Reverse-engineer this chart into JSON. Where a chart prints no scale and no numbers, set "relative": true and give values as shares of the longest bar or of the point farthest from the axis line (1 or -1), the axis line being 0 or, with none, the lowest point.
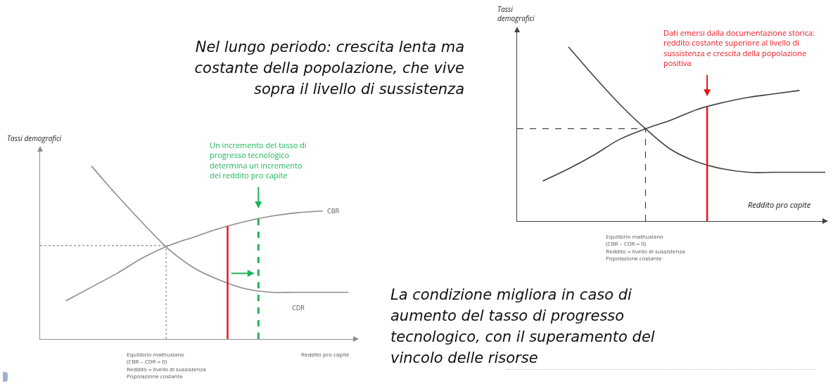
{
  "chart_data": [
    {
      "type": "line",
      "relative": true,
      "ylabel": "Tassi demografici",
      "xlabel": "Reddito pro capite",
      "annotations": [
        "Nel lungo periodo: crescita lenta ma costante della popolazione, che vive sopra il livello di sussistenza",
        "Equilibrio mathusiano\n(CBR – CDR = 0)\nReddito = livello di sussistenza\nPopolazione costante",
        "Un incremento del tasso di\nprogresso tecnologico\ndetermina un incremento\ndel reddito pro capite"
      ],
      "categories": [
        null,
        null,
        null,
        null,
        null,
        null,
        null,
        null,
        null,
        null,
        null,
        null,
        null
      ],
      "series": [
        {
          "name": "CBR",
          "color": "#8c8c8c",
          "values": [
            null,
            0.22,
            0.3,
            0.38,
            0.47,
            0.54,
            0.59,
            0.64,
            0.68,
            0.71,
            0.73,
            0.74,
            null
          ]
        },
        {
          "name": "CDR",
          "color": "#8c8c8c",
          "values": [
            null,
            null,
            1,
            0.83,
            0.67,
            0.52,
            0.41,
            0.34,
            0.29,
            0.27,
            0.27,
            0.27,
            0.27
          ]
        }
      ],
      "ref_lines": [
        {
          "axis": "y",
          "value": 0.54,
          "line_style": "dotted",
          "color": "#8c8c8c"
        }
      ],
      "legend": false,
      "marker": "none",
      "line_style": "solid"
    },
    {
      "type": "line",
      "relative": true,
      "ylabel": "Tassi\ndemografici",
      "xlabel": "Reddito pro capite",
      "annotations": [
        "La condizione migliora in caso di aumento del tasso di progresso tecnologico, con il superamento del vincolo delle risorse",
        "Equilibrio mathusiano\n(CBR – CDR = 0)\nReddito = livello di sussistenza\nPopolazione costante",
        "Dati emersi dalla documentazione storica:\nreddito costante superiore al livello di\nsussistenza e crescita della popolazione\npositiva"
      ],
      "categories": [
        null,
        null,
        null,
        null,
        null,
        null,
        null,
        null,
        null,
        null,
        null,
        null,
        null
      ],
      "series": [
        {
          "color": "#404040",
          "values": [
            null,
            0.23,
            0.3,
            0.38,
            0.47,
            0.53,
            0.58,
            0.64,
            0.68,
            0.71,
            0.73,
            0.75,
            null
          ]
        },
        {
          "color": "#404040",
          "values": [
            null,
            null,
            1,
            0.83,
            0.67,
            0.53,
            0.41,
            0.34,
            0.3,
            0.28,
            0.28,
            0.28,
            0.28
          ]
        }
      ],
      "ref_lines": [
        {
          "axis": "y",
          "value": 0.53,
          "line_style": "dashed",
          "color": "#404040"
        }
      ],
      "legend": false,
      "marker": "none",
      "line_style": "solid"
    }
  ]
}
